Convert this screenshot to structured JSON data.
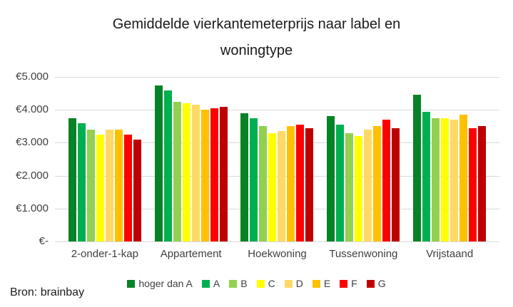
{
  "title_lines": [
    "Gemiddelde vierkantemeterprijs naar label en",
    "woningtype"
  ],
  "source": "Bron: brainbay",
  "chart_data": {
    "type": "bar",
    "title": "Gemiddelde vierkantemeterprijs naar label en woningtype",
    "xlabel": "",
    "ylabel": "",
    "ylim": [
      0,
      5000
    ],
    "grid": true,
    "legend_position": "bottom",
    "currency_format": "dutch_euro",
    "yticks": [
      {
        "value": 0,
        "label": "€-"
      },
      {
        "value": 1000,
        "label": "€1.000"
      },
      {
        "value": 2000,
        "label": "€2.000"
      },
      {
        "value": 3000,
        "label": "€3.000"
      },
      {
        "value": 4000,
        "label": "€4.000"
      },
      {
        "value": 5000,
        "label": "€5.000"
      }
    ],
    "categories": [
      "2-onder-1-kap",
      "Appartement",
      "Hoekwoning",
      "Tussenwoning",
      "Vrijstaand"
    ],
    "series": [
      {
        "name": "hoger dan A",
        "color": "#078226",
        "values": [
          3750,
          4750,
          3900,
          3800,
          4450
        ]
      },
      {
        "name": "A",
        "color": "#00B050",
        "values": [
          3600,
          4600,
          3750,
          3550,
          3950
        ]
      },
      {
        "name": "B",
        "color": "#92D050",
        "values": [
          3400,
          4250,
          3500,
          3300,
          3750
        ]
      },
      {
        "name": "C",
        "color": "#FFFF00",
        "values": [
          3250,
          4200,
          3300,
          3200,
          3750
        ]
      },
      {
        "name": "D",
        "color": "#FFD966",
        "values": [
          3400,
          4150,
          3350,
          3400,
          3700
        ]
      },
      {
        "name": "E",
        "color": "#FFC000",
        "values": [
          3400,
          4000,
          3500,
          3500,
          3850
        ]
      },
      {
        "name": "F",
        "color": "#FF0000",
        "values": [
          3250,
          4050,
          3550,
          3700,
          3450
        ]
      },
      {
        "name": "G",
        "color": "#C00000",
        "values": [
          3100,
          4100,
          3450,
          3450,
          3500
        ]
      }
    ]
  }
}
